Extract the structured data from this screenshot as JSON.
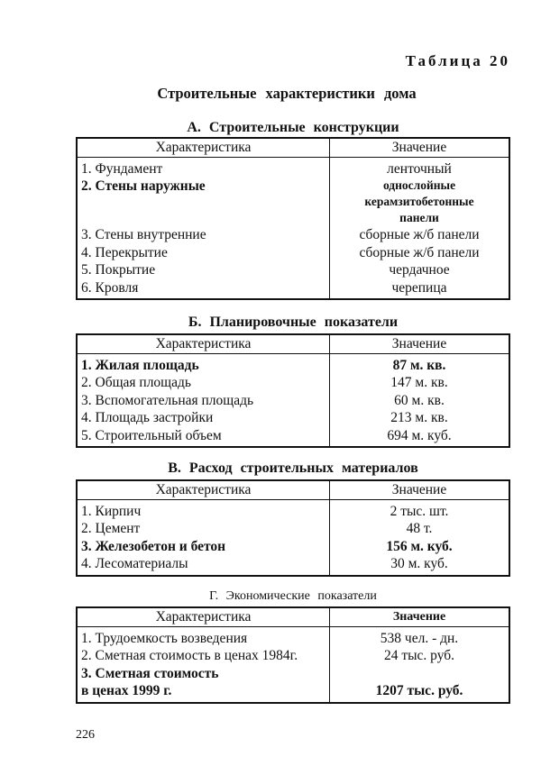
{
  "table_number": "Таблица 20",
  "title": "Строительные характеристики дома",
  "sections": [
    {
      "title": "А. Строительные конструкции",
      "headers": [
        "Характеристика",
        "Значение"
      ],
      "rows": [
        {
          "name": "1. Фундамент",
          "value": "ленточный"
        },
        {
          "name": "2. Стены наружные",
          "value": "однослойные\nкерамзитобетонные\nпанели",
          "bold": true
        },
        {
          "name": "3. Стены внутренние",
          "value": "сборные ж/б панели"
        },
        {
          "name": "4. Перекрытие",
          "value": "сборные ж/б панели"
        },
        {
          "name": "5. Покрытие",
          "value": "чердачное"
        },
        {
          "name": "6. Кровля",
          "value": "черепица"
        }
      ]
    },
    {
      "title": "Б. Планировочные показатели",
      "headers": [
        "Характеристика",
        "Значение"
      ],
      "rows": [
        {
          "name": "1. Жилая площадь",
          "value": "87 м. кв.",
          "bold": true
        },
        {
          "name": "2. Общая площадь",
          "value": "147 м. кв."
        },
        {
          "name": "3. Вспомогательная площадь",
          "value": "60 м. кв."
        },
        {
          "name": "4. Площадь застройки",
          "value": "213 м. кв."
        },
        {
          "name": "5. Строительный объем",
          "value": "694 м. куб."
        }
      ]
    },
    {
      "title": "В. Расход строительных материалов",
      "headers": [
        "Характеристика",
        "Значение"
      ],
      "rows": [
        {
          "name": "1. Кирпич",
          "value": "2 тыс. шт."
        },
        {
          "name": "2. Цемент",
          "value": "48 т."
        },
        {
          "name": "3. Железобетон и бетон",
          "value": "156 м. куб.",
          "bold": true
        },
        {
          "name": "4. Лесоматериалы",
          "value": "30 м. куб."
        }
      ]
    },
    {
      "title": "Г. Экономические показатели",
      "headers": [
        "Характеристика",
        "Значение"
      ],
      "rows": [
        {
          "name": "1. Трудоемкость возведения",
          "value": "538 чел. - дн."
        },
        {
          "name": "2. Сметная стоимость в ценах 1984г.",
          "value": "24 тыс. руб."
        },
        {
          "name": "3. Сметная стоимость\n    в ценах 1999 г.",
          "value": "\n1207 тыс. руб.",
          "bold": true
        }
      ]
    }
  ],
  "page_number": "226"
}
